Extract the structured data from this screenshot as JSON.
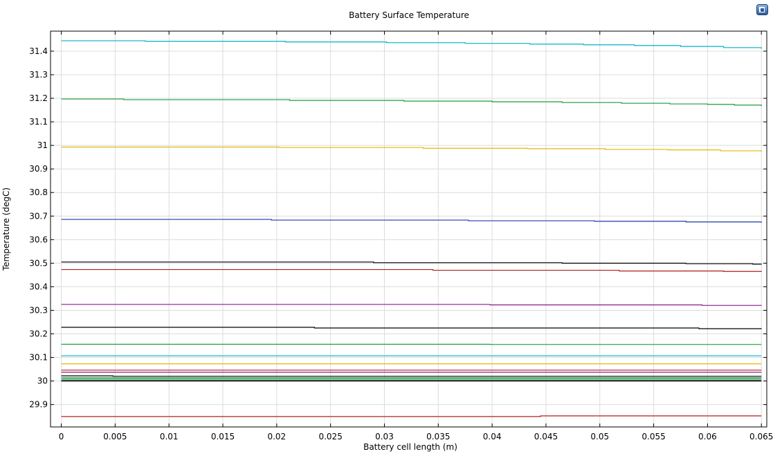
{
  "chart_data": {
    "type": "line",
    "title": "Battery Surface Temperature",
    "xlabel": "Battery cell length (m)",
    "ylabel": "Temperature (degC)",
    "xlim": [
      -0.001,
      0.0655
    ],
    "ylim": [
      29.805,
      31.485
    ],
    "grid": true,
    "x_ticks": [
      0,
      0.005,
      0.01,
      0.015,
      0.02,
      0.025,
      0.03,
      0.035,
      0.04,
      0.045,
      0.05,
      0.055,
      0.06,
      0.065
    ],
    "x_tick_labels": [
      "0",
      "0.005",
      "0.01",
      "0.015",
      "0.02",
      "0.025",
      "0.03",
      "0.035",
      "0.04",
      "0.045",
      "0.05",
      "0.055",
      "0.06",
      "0.065"
    ],
    "y_ticks": [
      29.9,
      30,
      30.1,
      30.2,
      30.3,
      30.4,
      30.5,
      30.6,
      30.7,
      30.8,
      30.9,
      31,
      31.1,
      31.2,
      31.3,
      31.4
    ],
    "y_tick_labels": [
      "29.9",
      "30",
      "30.1",
      "30.2",
      "30.3",
      "30.4",
      "30.5",
      "30.6",
      "30.7",
      "30.8",
      "30.9",
      "31",
      "31.1",
      "31.2",
      "31.3",
      "31.4"
    ],
    "series": [
      {
        "color": "#00b3c6",
        "x": [
          0,
          0.0078,
          0.0208,
          0.0302,
          0.0375,
          0.0435,
          0.0485,
          0.0532,
          0.0575,
          0.0615,
          0.065
        ],
        "y": [
          31.444,
          31.442,
          31.439,
          31.436,
          31.433,
          31.43,
          31.427,
          31.424,
          31.42,
          31.415,
          31.41
        ]
      },
      {
        "color": "#1a9b3c",
        "x": [
          0,
          0.0058,
          0.0212,
          0.0318,
          0.04,
          0.0465,
          0.052,
          0.0565,
          0.06,
          0.0625,
          0.065
        ],
        "y": [
          31.197,
          31.194,
          31.191,
          31.188,
          31.185,
          31.182,
          31.179,
          31.176,
          31.174,
          31.171,
          31.167
        ]
      },
      {
        "color": "#e6b800",
        "x": [
          0,
          0.0202,
          0.0336,
          0.0433,
          0.0505,
          0.0563,
          0.0612,
          0.065
        ],
        "y": [
          30.993,
          30.991,
          30.988,
          30.986,
          30.983,
          30.981,
          30.977,
          30.973
        ]
      },
      {
        "color": "#1f3aa8",
        "x": [
          0,
          0.0195,
          0.0378,
          0.0495,
          0.058,
          0.065
        ],
        "y": [
          30.686,
          30.683,
          30.68,
          30.678,
          30.675,
          30.672
        ]
      },
      {
        "color": "#000000",
        "x": [
          0,
          0.029,
          0.0465,
          0.058,
          0.0642,
          0.065
        ],
        "y": [
          30.505,
          30.502,
          30.5,
          30.498,
          30.496,
          30.495
        ]
      },
      {
        "color": "#b01c1c",
        "x": [
          0,
          0.0345,
          0.0518,
          0.0615,
          0.065
        ],
        "y": [
          30.473,
          30.47,
          30.467,
          30.465,
          30.463
        ]
      },
      {
        "color": "#8c1a8c",
        "x": [
          0,
          0.0398,
          0.0595,
          0.065
        ],
        "y": [
          30.325,
          30.323,
          30.321,
          30.32
        ]
      },
      {
        "color": "#000000",
        "x": [
          0,
          0.0235,
          0.0592,
          0.065
        ],
        "y": [
          30.228,
          30.225,
          30.222,
          30.221
        ]
      },
      {
        "color": "#1a9b3c",
        "x": [
          0,
          0.0398,
          0.065
        ],
        "y": [
          30.156,
          30.155,
          30.155
        ]
      },
      {
        "color": "#00b3c6",
        "x": [
          0,
          0.065
        ],
        "y": [
          30.107,
          30.107
        ]
      },
      {
        "color": "#e6b800",
        "x": [
          0,
          0.065
        ],
        "y": [
          30.073,
          30.073
        ]
      },
      {
        "color": "#b01c1c",
        "x": [
          0,
          0.065
        ],
        "y": [
          30.046,
          30.046
        ]
      },
      {
        "color": "#8c1a8c",
        "x": [
          0,
          0.065
        ],
        "y": [
          30.037,
          30.037
        ]
      },
      {
        "color": "#000000",
        "x": [
          0,
          0.0048,
          0.065
        ],
        "y": [
          30.022,
          30.02,
          30.02
        ]
      },
      {
        "color": "#1a9b3c",
        "x": [
          0,
          0.065
        ],
        "y": [
          30.014,
          30.014
        ]
      },
      {
        "color": "#00b3c6",
        "x": [
          0,
          0.065
        ],
        "y": [
          30.009,
          30.009
        ]
      },
      {
        "color": "#e6b800",
        "x": [
          0,
          0.065
        ],
        "y": [
          30.005,
          30.005
        ]
      },
      {
        "color": "#1f3aa8",
        "x": [
          0,
          0.065
        ],
        "y": [
          30.002,
          30.002
        ]
      },
      {
        "color": "#000000",
        "x": [
          0,
          0.065
        ],
        "y": [
          30.0,
          30.0
        ]
      },
      {
        "color": "#b01c1c",
        "x": [
          0,
          0.0445,
          0.065
        ],
        "y": [
          29.849,
          29.852,
          29.852
        ]
      }
    ]
  },
  "toolbar": {
    "icon": "comsol-plot-icon"
  }
}
